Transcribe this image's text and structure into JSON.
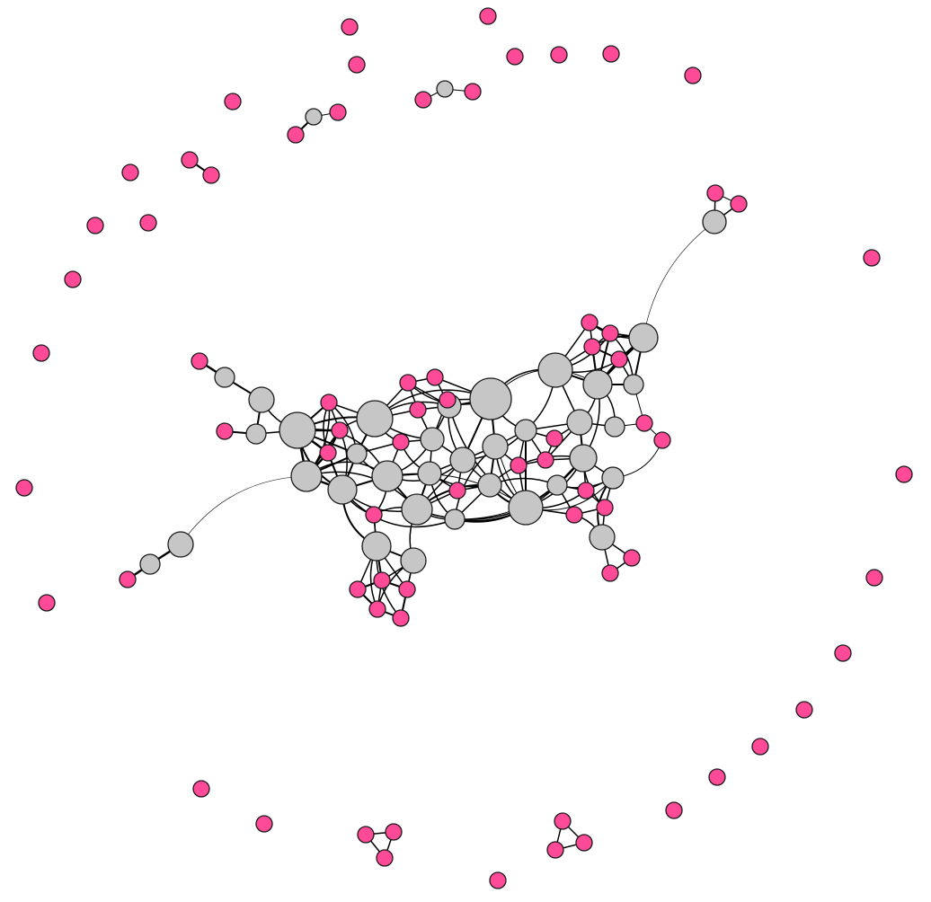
{
  "diagram": {
    "type": "network-graph",
    "colors": {
      "background": "#ffffff",
      "pink_node": "#ff4a97",
      "gray_node": "#c6c6c6",
      "node_outline": "#1a1a1a",
      "edge": "#000000"
    }
  }
}
